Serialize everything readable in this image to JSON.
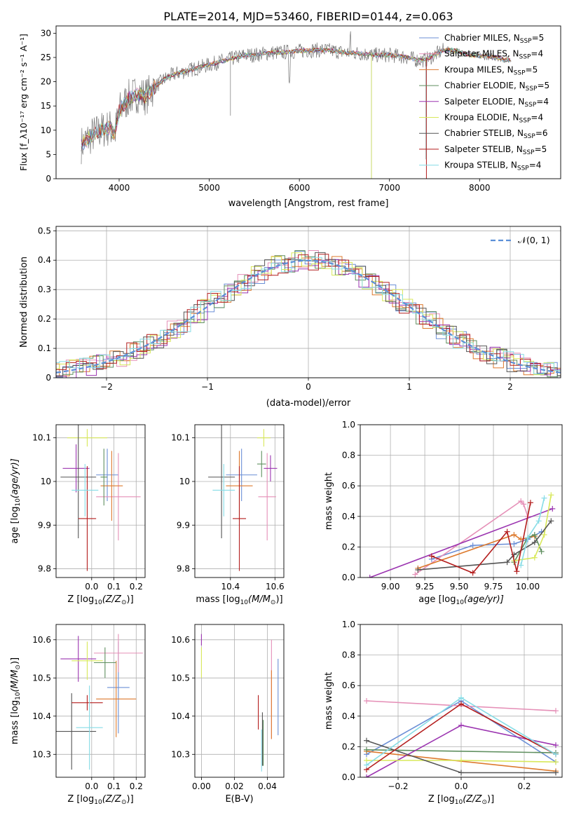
{
  "figure": {
    "title": "PLATE=2014, MJD=53460, FIBERID=0144, z=0.063"
  },
  "model_colors": {
    "Chabrier MILES": "#6b8fd6",
    "Salpeter MILES": "#e58fb7",
    "Kroupa MILES": "#dd7a2e",
    "Chabrier ELODIE": "#5f8f5f",
    "Salpeter ELODIE": "#9b34b0",
    "Kroupa ELODIE": "#d8e85a",
    "Chabrier STELIB": "#555555",
    "Salpeter STELIB": "#b41e1e",
    "Kroupa STELIB": "#86dce6"
  },
  "chart_data": [
    {
      "id": "spectrum",
      "type": "line",
      "xlabel": "wavelength [Angstrom, rest frame]",
      "ylabel": "Flux [f_λ10⁻¹⁷ erg cm⁻² s⁻¹ A⁻¹]",
      "xlim": [
        3300,
        8900
      ],
      "ylim": [
        0,
        31.5
      ],
      "xticks": [
        4000,
        5000,
        6000,
        7000,
        8000
      ],
      "yticks": [
        0,
        5,
        10,
        15,
        20,
        25,
        30
      ],
      "grid": false,
      "legend_position": "right",
      "legend": [
        {
          "model": "Chabrier MILES",
          "label": "Chabrier MILES, N",
          "sub": "SSP",
          "suffix": "=5"
        },
        {
          "model": "Salpeter MILES",
          "label": "Salpeter MILES, N",
          "sub": "SSP",
          "suffix": "=4"
        },
        {
          "model": "Kroupa MILES",
          "label": "Kroupa MILES, N",
          "sub": "SSP",
          "suffix": "=5"
        },
        {
          "model": "Chabrier ELODIE",
          "label": "Chabrier ELODIE, N",
          "sub": "SSP",
          "suffix": "=5"
        },
        {
          "model": "Salpeter ELODIE",
          "label": "Salpeter ELODIE, N",
          "sub": "SSP",
          "suffix": "=4"
        },
        {
          "model": "Kroupa ELODIE",
          "label": "Kroupa ELODIE, N",
          "sub": "SSP",
          "suffix": "=4"
        },
        {
          "model": "Chabrier STELIB",
          "label": "Chabrier STELIB, N",
          "sub": "SSP",
          "suffix": "=6"
        },
        {
          "model": "Salpeter STELIB",
          "label": "Salpeter STELIB, N",
          "sub": "SSP",
          "suffix": "=5"
        },
        {
          "model": "Kroupa STELIB",
          "label": "Kroupa STELIB, N",
          "sub": "SSP",
          "suffix": "=4"
        }
      ],
      "continuum": {
        "wavelength": [
          3580,
          3700,
          3800,
          3900,
          3950,
          4000,
          4100,
          4200,
          4300,
          4400,
          4500,
          4600,
          4700,
          4800,
          4900,
          5000,
          5100,
          5200,
          5300,
          5400,
          5500,
          5600,
          5700,
          5800,
          5900,
          6000,
          6100,
          6200,
          6300,
          6400,
          6500,
          6600,
          6700,
          6800,
          6900,
          7000,
          7100,
          7200,
          7300,
          7400,
          7500,
          7600,
          7700,
          7800,
          7900,
          8000,
          8100,
          8200,
          8300
        ],
        "flux": [
          7,
          9,
          10,
          10.5,
          9,
          14,
          16.5,
          17.5,
          17,
          19,
          20.5,
          21.5,
          22,
          22.5,
          23,
          23.5,
          24,
          24.5,
          25,
          25.5,
          25.5,
          25.8,
          26,
          26,
          26.2,
          26.3,
          26.5,
          26.5,
          26.5,
          26.3,
          26,
          26,
          25.8,
          25.5,
          25.5,
          25.5,
          25.3,
          25,
          24.5,
          24.5,
          25.5,
          26.5,
          26.5,
          26,
          25.5,
          25.3,
          25.2,
          25,
          24.5
        ]
      }
    },
    {
      "id": "residuals",
      "type": "histogram",
      "xlabel": "(data-model)/error",
      "ylabel": "Normed distribution",
      "xlim": [
        -2.5,
        2.5
      ],
      "ylim": [
        0,
        0.515
      ],
      "xticks": [
        -2,
        -1,
        0,
        1,
        2
      ],
      "xticklabels": [
        "−2",
        "−1",
        "0",
        "1",
        "2"
      ],
      "yticks": [
        0,
        0.1,
        0.2,
        0.3,
        0.4,
        0.5
      ],
      "grid": true,
      "reference_curve": {
        "label": "𝒩(0, 1)",
        "mean": 0,
        "sigma": 1,
        "style": "dashed"
      },
      "legend_position": "top-right"
    },
    {
      "id": "age-vs-Z",
      "type": "errorbar",
      "xlabel_main": "Z [log",
      "xlabel_sub": "10",
      "xlabel_rest": "(Z/Z",
      "xlabel_sun": "⊙",
      "xlabel_end": ")]",
      "ylabel_main": "age  [log",
      "ylabel_sub": "10",
      "ylabel_rest": "(age/yr)]",
      "xlim": [
        -0.16,
        0.24
      ],
      "ylim": [
        9.78,
        10.13
      ],
      "xticks": [
        0.0,
        0.1,
        0.2
      ],
      "xticklabels": [
        "0.0",
        "0.1",
        "0.2"
      ],
      "yticks": [
        9.8,
        9.9,
        10.0,
        10.1
      ],
      "grid": true,
      "points": [
        {
          "model": "Chabrier MILES",
          "x": 0.07,
          "xerr": 0.05,
          "y": 10.015,
          "yerr": 0.06
        },
        {
          "model": "Salpeter MILES",
          "x": 0.12,
          "xerr": 0.1,
          "y": 9.965,
          "yerr": 0.1
        },
        {
          "model": "Kroupa MILES",
          "x": 0.09,
          "xerr": 0.05,
          "y": 9.99,
          "yerr": 0.08
        },
        {
          "model": "Chabrier ELODIE",
          "x": 0.055,
          "xerr": 0.015,
          "y": 10.01,
          "yerr": 0.065
        },
        {
          "model": "Salpeter ELODIE",
          "x": -0.07,
          "xerr": 0.06,
          "y": 10.03,
          "yerr": 0.055
        },
        {
          "model": "Kroupa ELODIE",
          "x": -0.02,
          "xerr": 0.09,
          "y": 10.1,
          "yerr": 0.02
        },
        {
          "model": "Chabrier STELIB",
          "x": -0.06,
          "xerr": 0.08,
          "y": 10.01,
          "yerr": 0.14
        },
        {
          "model": "Salpeter STELIB",
          "x": -0.02,
          "xerr": 0.04,
          "y": 9.915,
          "yerr": 0.12
        },
        {
          "model": "Kroupa STELIB",
          "x": -0.03,
          "xerr": 0.06,
          "y": 9.98,
          "yerr": 0.06
        }
      ]
    },
    {
      "id": "age-vs-mass",
      "type": "errorbar",
      "xlabel_main": "mass [log",
      "xlabel_sub": "10",
      "xlabel_rest": "(M/M",
      "xlabel_sun": "⊙",
      "xlabel_end": ")]",
      "xlim": [
        10.24,
        10.64
      ],
      "ylim": [
        9.78,
        10.13
      ],
      "xticks": [
        10.4,
        10.6
      ],
      "xticklabels": [
        "10.4",
        "10.6"
      ],
      "yticks": [
        9.8,
        9.9,
        10.0,
        10.1
      ],
      "grid": true,
      "points": [
        {
          "model": "Chabrier MILES",
          "x": 10.45,
          "xerr": 0.07,
          "y": 10.015,
          "yerr": 0.06
        },
        {
          "model": "Salpeter MILES",
          "x": 10.565,
          "xerr": 0.04,
          "y": 9.965,
          "yerr": 0.1
        },
        {
          "model": "Kroupa MILES",
          "x": 10.44,
          "xerr": 0.06,
          "y": 9.99,
          "yerr": 0.08
        },
        {
          "model": "Chabrier ELODIE",
          "x": 10.54,
          "xerr": 0.02,
          "y": 10.04,
          "yerr": 0.03
        },
        {
          "model": "Salpeter ELODIE",
          "x": 10.58,
          "xerr": 0.03,
          "y": 10.03,
          "yerr": 0.03
        },
        {
          "model": "Kroupa ELODIE",
          "x": 10.55,
          "xerr": 0.03,
          "y": 10.1,
          "yerr": 0.02
        },
        {
          "model": "Chabrier STELIB",
          "x": 10.36,
          "xerr": 0.06,
          "y": 10.01,
          "yerr": 0.14
        },
        {
          "model": "Salpeter STELIB",
          "x": 10.44,
          "xerr": 0.03,
          "y": 9.915,
          "yerr": 0.12
        },
        {
          "model": "Kroupa STELIB",
          "x": 10.37,
          "xerr": 0.05,
          "y": 9.98,
          "yerr": 0.06
        }
      ]
    },
    {
      "id": "weight-vs-age",
      "type": "line",
      "xlabel_main": "age  [log",
      "xlabel_sub": "10",
      "xlabel_rest": "(age/yr)]",
      "ylabel": "mass weight",
      "xlim": [
        8.78,
        10.25
      ],
      "ylim": [
        0,
        1.0
      ],
      "xticks": [
        9.0,
        9.25,
        9.5,
        9.75,
        10.0
      ],
      "xticklabels": [
        "9.00",
        "9.25",
        "9.50",
        "9.75",
        "10.00"
      ],
      "yticks": [
        0,
        0.2,
        0.4,
        0.6,
        0.8,
        1.0
      ],
      "yticklabels": [
        "0.0",
        "0.2",
        "0.4",
        "0.6",
        "0.8",
        "1.0"
      ],
      "grid": true,
      "series": [
        {
          "model": "Chabrier MILES",
          "x": [
            9.3,
            9.6,
            9.9,
            10.0,
            10.1
          ],
          "y": [
            0.12,
            0.21,
            0.22,
            0.25,
            0.3
          ]
        },
        {
          "model": "Salpeter MILES",
          "x": [
            9.18,
            9.95,
            9.97,
            10.0
          ],
          "y": [
            0.02,
            0.5,
            0.48,
            0.4
          ]
        },
        {
          "model": "Kroupa MILES",
          "x": [
            9.2,
            9.9,
            9.95,
            10.05
          ],
          "y": [
            0.06,
            0.28,
            0.25,
            0.27
          ]
        },
        {
          "model": "Chabrier ELODIE",
          "x": [
            9.9,
            10.0,
            10.05,
            10.1
          ],
          "y": [
            0.1,
            0.26,
            0.28,
            0.17
          ]
        },
        {
          "model": "Salpeter ELODIE",
          "x": [
            8.85,
            10.18
          ],
          "y": [
            0.0,
            0.45
          ]
        },
        {
          "model": "Kroupa ELODIE",
          "x": [
            9.9,
            10.05,
            10.12,
            10.17
          ],
          "y": [
            0.11,
            0.13,
            0.28,
            0.54
          ]
        },
        {
          "model": "Chabrier STELIB",
          "x": [
            9.2,
            9.85,
            9.9,
            10.05,
            10.17
          ],
          "y": [
            0.05,
            0.1,
            0.15,
            0.23,
            0.37
          ]
        },
        {
          "model": "Salpeter STELIB",
          "x": [
            9.3,
            9.6,
            9.85,
            9.92,
            10.02
          ],
          "y": [
            0.14,
            0.03,
            0.3,
            0.04,
            0.49
          ]
        },
        {
          "model": "Kroupa STELIB",
          "x": [
            9.95,
            10.0,
            10.08,
            10.12
          ],
          "y": [
            0.08,
            0.26,
            0.37,
            0.52
          ]
        }
      ]
    },
    {
      "id": "mass-vs-Z",
      "type": "errorbar",
      "xlabel_main": "Z [log",
      "xlabel_sub": "10",
      "xlabel_rest": "(Z/Z",
      "xlabel_sun": "⊙",
      "xlabel_end": ")]",
      "ylabel_main": "mass [log",
      "ylabel_sub": "10",
      "ylabel_rest": "(M/M",
      "ylabel_sun": "⊙",
      "ylabel_end": ")]",
      "xlim": [
        -0.16,
        0.24
      ],
      "ylim": [
        10.24,
        10.64
      ],
      "xticks": [
        0.0,
        0.1,
        0.2
      ],
      "xticklabels": [
        "0.0",
        "0.1",
        "0.2"
      ],
      "yticks": [
        10.3,
        10.4,
        10.5,
        10.6
      ],
      "grid": true,
      "points": [
        {
          "model": "Chabrier MILES",
          "x": 0.12,
          "xerr": 0.05,
          "y": 10.475,
          "yerr": 0.12
        },
        {
          "model": "Salpeter MILES",
          "x": 0.12,
          "xerr": 0.11,
          "y": 10.565,
          "yerr": 0.05
        },
        {
          "model": "Kroupa MILES",
          "x": 0.11,
          "xerr": 0.09,
          "y": 10.445,
          "yerr": 0.1
        },
        {
          "model": "Chabrier ELODIE",
          "x": 0.06,
          "xerr": 0.05,
          "y": 10.54,
          "yerr": 0.04
        },
        {
          "model": "Salpeter ELODIE",
          "x": -0.06,
          "xerr": 0.08,
          "y": 10.55,
          "yerr": 0.06
        },
        {
          "model": "Kroupa ELODIE",
          "x": -0.02,
          "xerr": 0.07,
          "y": 10.545,
          "yerr": 0.05
        },
        {
          "model": "Chabrier STELIB",
          "x": -0.09,
          "xerr": 0.11,
          "y": 10.36,
          "yerr": 0.1
        },
        {
          "model": "Salpeter STELIB",
          "x": -0.02,
          "xerr": 0.07,
          "y": 10.435,
          "yerr": 0.02
        },
        {
          "model": "Kroupa STELIB",
          "x": -0.01,
          "xerr": 0.06,
          "y": 10.37,
          "yerr": 0.11
        }
      ]
    },
    {
      "id": "mass-vs-EBV",
      "type": "errorbar",
      "xlabel": "E(B-V)",
      "xlim": [
        -0.004,
        0.05
      ],
      "ylim": [
        10.24,
        10.64
      ],
      "xticks": [
        0.0,
        0.02,
        0.04
      ],
      "xticklabels": [
        "0.00",
        "0.02",
        "0.04"
      ],
      "yticks": [
        10.3,
        10.4,
        10.5,
        10.6
      ],
      "grid": true,
      "points": [
        {
          "model": "Chabrier MILES",
          "x": 0.0465,
          "xerr": 0,
          "y": 10.45,
          "yerr": 0.1
        },
        {
          "model": "Salpeter MILES",
          "x": 0.0425,
          "xerr": 0,
          "y": 10.47,
          "yerr": 0.13
        },
        {
          "model": "Kroupa MILES",
          "x": 0.0425,
          "xerr": 0,
          "y": 10.43,
          "yerr": 0.09
        },
        {
          "model": "Chabrier ELODIE",
          "x": 0.0375,
          "xerr": 0,
          "y": 10.33,
          "yerr": 0.06
        },
        {
          "model": "Salpeter ELODIE",
          "x": 0.0,
          "xerr": 0,
          "y": 10.6,
          "yerr": 0.015
        },
        {
          "model": "Kroupa ELODIE",
          "x": 0.0,
          "xerr": 0,
          "y": 10.54,
          "yerr": 0.04
        },
        {
          "model": "Chabrier STELIB",
          "x": 0.037,
          "xerr": 0,
          "y": 10.34,
          "yerr": 0.07
        },
        {
          "model": "Salpeter STELIB",
          "x": 0.0345,
          "xerr": 0,
          "y": 10.41,
          "yerr": 0.045
        },
        {
          "model": "Kroupa STELIB",
          "x": 0.0365,
          "xerr": 0,
          "y": 10.31,
          "yerr": 0.055
        }
      ]
    },
    {
      "id": "weight-vs-Z",
      "type": "line",
      "xlabel_main": "Z [log",
      "xlabel_sub": "10",
      "xlabel_rest": "(Z/Z",
      "xlabel_sun": "⊙",
      "xlabel_end": ")]",
      "ylabel": "mass weight",
      "xlim": [
        -0.32,
        0.32
      ],
      "ylim": [
        0,
        1.0
      ],
      "xticks": [
        -0.2,
        0.0,
        0.2
      ],
      "xticklabels": [
        "−0.2",
        "0.0",
        "0.2"
      ],
      "yticks": [
        0,
        0.2,
        0.4,
        0.6,
        0.8,
        1.0
      ],
      "yticklabels": [
        "0.0",
        "0.2",
        "0.4",
        "0.6",
        "0.8",
        "1.0"
      ],
      "grid": true,
      "series": [
        {
          "model": "Chabrier MILES",
          "x": [
            -0.3,
            0.0,
            0.3
          ],
          "y": [
            0.15,
            0.5,
            0.1
          ]
        },
        {
          "model": "Salpeter MILES",
          "x": [
            -0.3,
            0.3
          ],
          "y": [
            0.5,
            0.435
          ]
        },
        {
          "model": "Kroupa MILES",
          "x": [
            -0.3,
            0.3
          ],
          "y": [
            0.17,
            0.04
          ]
        },
        {
          "model": "Chabrier ELODIE",
          "x": [
            -0.3,
            0.3
          ],
          "y": [
            0.18,
            0.16
          ]
        },
        {
          "model": "Salpeter ELODIE",
          "x": [
            -0.3,
            0.0,
            0.3
          ],
          "y": [
            0.0,
            0.34,
            0.21
          ]
        },
        {
          "model": "Kroupa ELODIE",
          "x": [
            -0.3,
            0.0,
            0.3
          ],
          "y": [
            0.11,
            0.11,
            0.1
          ]
        },
        {
          "model": "Chabrier STELIB",
          "x": [
            -0.3,
            0.0,
            0.3
          ],
          "y": [
            0.24,
            0.03,
            0.03
          ]
        },
        {
          "model": "Salpeter STELIB",
          "x": [
            -0.3,
            0.0,
            0.3
          ],
          "y": [
            0.05,
            0.48,
            0.15
          ]
        },
        {
          "model": "Kroupa STELIB",
          "x": [
            -0.3,
            0.0,
            0.3
          ],
          "y": [
            0.08,
            0.52,
            0.15
          ]
        }
      ]
    }
  ]
}
